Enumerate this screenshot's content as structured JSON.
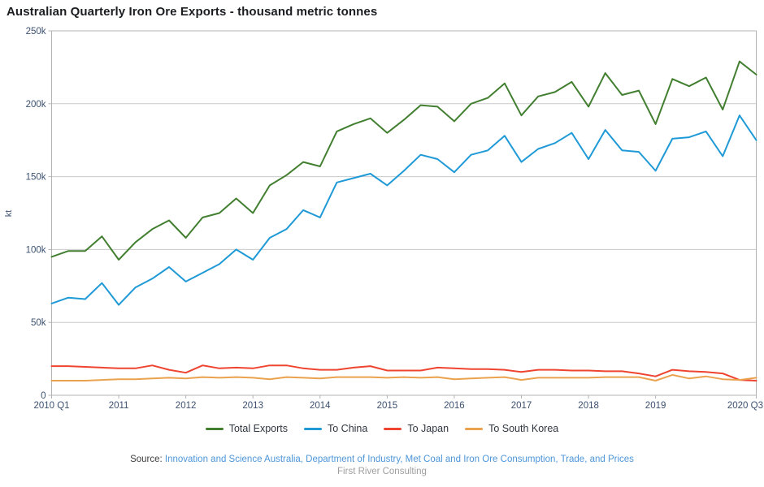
{
  "chart_data": {
    "type": "line",
    "title": "Australian Quarterly Iron Ore Exports - thousand metric tonnes",
    "xlabel": "",
    "ylabel": "kt",
    "unit": "kt",
    "ylim": [
      0,
      250000
    ],
    "grid": "horizontal",
    "legend_position": "bottom",
    "categories": [
      "2010 Q1",
      "2010 Q2",
      "2010 Q3",
      "2010 Q4",
      "2011 Q1",
      "2011 Q2",
      "2011 Q3",
      "2011 Q4",
      "2012 Q1",
      "2012 Q2",
      "2012 Q3",
      "2012 Q4",
      "2013 Q1",
      "2013 Q2",
      "2013 Q3",
      "2013 Q4",
      "2014 Q1",
      "2014 Q2",
      "2014 Q3",
      "2014 Q4",
      "2015 Q1",
      "2015 Q2",
      "2015 Q3",
      "2015 Q4",
      "2016 Q1",
      "2016 Q2",
      "2016 Q3",
      "2016 Q4",
      "2017 Q1",
      "2017 Q2",
      "2017 Q3",
      "2017 Q4",
      "2018 Q1",
      "2018 Q2",
      "2018 Q3",
      "2018 Q4",
      "2019 Q1",
      "2019 Q2",
      "2019 Q3",
      "2019 Q4",
      "2020 Q1",
      "2020 Q2",
      "2020 Q3"
    ],
    "x_tick_indices": [
      0,
      4,
      8,
      12,
      16,
      20,
      24,
      28,
      32,
      36,
      42
    ],
    "x_tick_labels": [
      "2010 Q1",
      "2011",
      "2012",
      "2013",
      "2014",
      "2015",
      "2016",
      "2017",
      "2018",
      "2019",
      "2020 Q3"
    ],
    "y_ticks": [
      {
        "value": 0,
        "label": "0"
      },
      {
        "value": 50000,
        "label": "50k"
      },
      {
        "value": 100000,
        "label": "100k"
      },
      {
        "value": 150000,
        "label": "150k"
      },
      {
        "value": 200000,
        "label": "200k"
      },
      {
        "value": 250000,
        "label": "250k"
      }
    ],
    "series": [
      {
        "name": "Total Exports",
        "color": "#427f30",
        "values": [
          95000,
          99000,
          99000,
          109000,
          93000,
          105000,
          114000,
          120000,
          108000,
          122000,
          125000,
          135000,
          125000,
          144000,
          151000,
          160000,
          157000,
          181000,
          186000,
          190000,
          180000,
          189000,
          199000,
          198000,
          188000,
          200000,
          204000,
          214000,
          192000,
          205000,
          208000,
          215000,
          198000,
          221000,
          206000,
          209000,
          186000,
          217000,
          212000,
          218000,
          196000,
          229000,
          220000
        ]
      },
      {
        "name": "To China",
        "color": "#1f9ad7",
        "values": [
          63000,
          67000,
          66000,
          77000,
          62000,
          74000,
          80000,
          88000,
          78000,
          84000,
          90000,
          100000,
          93000,
          108000,
          114000,
          127000,
          122000,
          146000,
          149000,
          152000,
          144000,
          154000,
          165000,
          162000,
          153000,
          165000,
          168000,
          178000,
          160000,
          169000,
          173000,
          180000,
          162000,
          182000,
          168000,
          167000,
          154000,
          176000,
          177000,
          181000,
          164000,
          192000,
          175000
        ]
      },
      {
        "name": "To Japan",
        "color": "#ee4430",
        "values": [
          20000,
          20000,
          19500,
          19000,
          18500,
          18500,
          20500,
          17500,
          15500,
          20500,
          18500,
          19000,
          18500,
          20500,
          20500,
          18500,
          17500,
          17500,
          19000,
          20000,
          17000,
          17000,
          17000,
          19000,
          18500,
          18000,
          18000,
          17500,
          16000,
          17500,
          17500,
          17000,
          17000,
          16500,
          16500,
          15000,
          13000,
          17500,
          16500,
          16000,
          15000,
          10500,
          10000
        ]
      },
      {
        "name": "To South Korea",
        "color": "#eba24f",
        "values": [
          10000,
          10000,
          10000,
          10500,
          11000,
          11000,
          11500,
          12000,
          11500,
          12500,
          12000,
          12500,
          12000,
          11000,
          12500,
          12000,
          11500,
          12500,
          12500,
          12500,
          12000,
          12500,
          12000,
          12500,
          11000,
          11500,
          12000,
          12500,
          10500,
          12000,
          12000,
          12000,
          12000,
          12500,
          12500,
          12500,
          10000,
          14000,
          11500,
          13000,
          11000,
          10500,
          12000
        ]
      }
    ]
  },
  "footer": {
    "source_label": "Source:",
    "source_link_text": "Innovation and Science Australia, Department of Industry, Met Coal and Iron Ore Consumption, Trade, and Prices",
    "credit": "First River Consulting"
  },
  "colors": {
    "title_text": "#1b1d21",
    "axis_text": "#3c5170",
    "grid": "#c9c9c9",
    "axis_line": "#b3b3b3",
    "legend_text": "#2f3640",
    "link": "#4d96d9",
    "credit_text": "#9e9e9e"
  }
}
